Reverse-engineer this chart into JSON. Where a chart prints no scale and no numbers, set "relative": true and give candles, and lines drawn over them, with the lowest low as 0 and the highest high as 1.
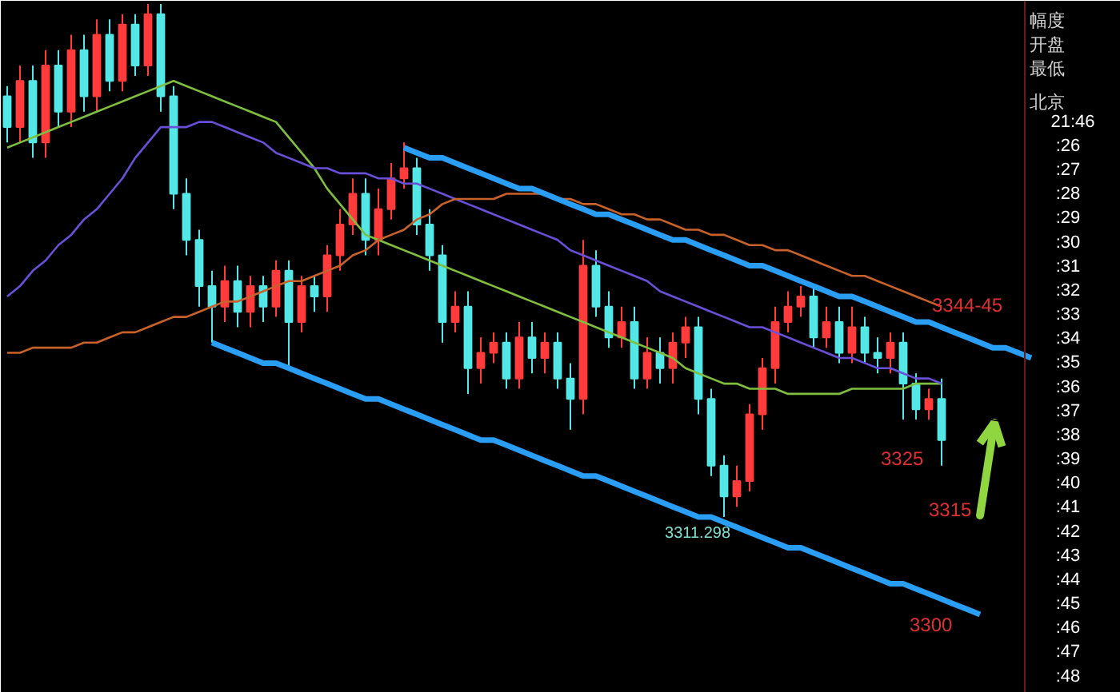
{
  "chart_data": {
    "type": "candlestick",
    "relative": true,
    "grid": false,
    "categories": [
      null,
      null,
      null,
      null,
      null,
      null,
      null,
      null,
      null,
      null,
      null,
      null,
      null,
      null,
      null,
      null,
      null,
      null,
      null,
      null,
      null,
      null,
      null,
      null,
      null,
      null,
      null,
      null,
      null,
      null,
      null,
      null,
      null,
      null,
      null,
      null,
      null,
      null,
      null,
      null,
      null,
      null,
      null,
      null,
      null,
      null,
      null,
      null,
      null,
      null,
      null,
      null,
      null,
      null,
      null,
      null,
      null,
      null,
      null,
      null,
      null,
      null,
      null,
      null,
      null,
      null,
      null,
      null,
      null,
      null,
      null,
      null,
      null,
      null,
      null,
      null,
      null,
      null,
      null,
      null,
      null
    ],
    "ohlc": [
      [
        0.82,
        0.84,
        0.73,
        0.76
      ],
      [
        0.76,
        0.88,
        0.73,
        0.85
      ],
      [
        0.85,
        0.88,
        0.7,
        0.73
      ],
      [
        0.73,
        0.91,
        0.7,
        0.88
      ],
      [
        0.88,
        0.91,
        0.76,
        0.79
      ],
      [
        0.79,
        0.94,
        0.76,
        0.91
      ],
      [
        0.91,
        0.94,
        0.79,
        0.82
      ],
      [
        0.82,
        0.97,
        0.79,
        0.94
      ],
      [
        0.94,
        0.97,
        0.83,
        0.85
      ],
      [
        0.85,
        0.98,
        0.83,
        0.96
      ],
      [
        0.96,
        0.98,
        0.86,
        0.88
      ],
      [
        0.88,
        1.0,
        0.86,
        0.98
      ],
      [
        0.98,
        1.0,
        0.79,
        0.82
      ],
      [
        0.82,
        0.84,
        0.6,
        0.63
      ],
      [
        0.63,
        0.66,
        0.51,
        0.54
      ],
      [
        0.54,
        0.56,
        0.41,
        0.45
      ],
      [
        0.45,
        0.48,
        0.34,
        0.41
      ],
      [
        0.41,
        0.49,
        0.38,
        0.46
      ],
      [
        0.46,
        0.49,
        0.37,
        0.4
      ],
      [
        0.4,
        0.47,
        0.37,
        0.45
      ],
      [
        0.45,
        0.47,
        0.38,
        0.41
      ],
      [
        0.41,
        0.5,
        0.39,
        0.48
      ],
      [
        0.48,
        0.5,
        0.29,
        0.38
      ],
      [
        0.38,
        0.47,
        0.36,
        0.45
      ],
      [
        0.45,
        0.47,
        0.4,
        0.43
      ],
      [
        0.43,
        0.53,
        0.4,
        0.51
      ],
      [
        0.51,
        0.6,
        0.48,
        0.57
      ],
      [
        0.57,
        0.66,
        0.55,
        0.63
      ],
      [
        0.63,
        0.66,
        0.51,
        0.54
      ],
      [
        0.54,
        0.64,
        0.51,
        0.6
      ],
      [
        0.6,
        0.69,
        0.58,
        0.66
      ],
      [
        0.66,
        0.73,
        0.64,
        0.68
      ],
      [
        0.68,
        0.7,
        0.55,
        0.57
      ],
      [
        0.57,
        0.6,
        0.48,
        0.51
      ],
      [
        0.51,
        0.53,
        0.34,
        0.38
      ],
      [
        0.38,
        0.44,
        0.36,
        0.41
      ],
      [
        0.41,
        0.44,
        0.24,
        0.29
      ],
      [
        0.29,
        0.35,
        0.26,
        0.32
      ],
      [
        0.32,
        0.36,
        0.3,
        0.34
      ],
      [
        0.34,
        0.36,
        0.25,
        0.27
      ],
      [
        0.27,
        0.38,
        0.25,
        0.35
      ],
      [
        0.35,
        0.38,
        0.28,
        0.31
      ],
      [
        0.31,
        0.36,
        0.28,
        0.34
      ],
      [
        0.34,
        0.36,
        0.25,
        0.27
      ],
      [
        0.27,
        0.3,
        0.17,
        0.23
      ],
      [
        0.23,
        0.54,
        0.2,
        0.49
      ],
      [
        0.49,
        0.52,
        0.39,
        0.41
      ],
      [
        0.41,
        0.44,
        0.33,
        0.35
      ],
      [
        0.35,
        0.41,
        0.33,
        0.38
      ],
      [
        0.38,
        0.41,
        0.25,
        0.27
      ],
      [
        0.27,
        0.35,
        0.25,
        0.32
      ],
      [
        0.32,
        0.35,
        0.26,
        0.29
      ],
      [
        0.29,
        0.36,
        0.26,
        0.34
      ],
      [
        0.34,
        0.39,
        0.31,
        0.37
      ],
      [
        0.37,
        0.39,
        0.2,
        0.23
      ],
      [
        0.23,
        0.25,
        0.08,
        0.1
      ],
      [
        0.1,
        0.12,
        0.0,
        0.04
      ],
      [
        0.04,
        0.1,
        0.02,
        0.07
      ],
      [
        0.07,
        0.22,
        0.05,
        0.2
      ],
      [
        0.2,
        0.31,
        0.17,
        0.29
      ],
      [
        0.29,
        0.41,
        0.26,
        0.38
      ],
      [
        0.38,
        0.44,
        0.36,
        0.41
      ],
      [
        0.41,
        0.45,
        0.39,
        0.43
      ],
      [
        0.43,
        0.45,
        0.33,
        0.35
      ],
      [
        0.35,
        0.41,
        0.33,
        0.38
      ],
      [
        0.38,
        0.41,
        0.3,
        0.32
      ],
      [
        0.32,
        0.41,
        0.3,
        0.37
      ],
      [
        0.37,
        0.39,
        0.3,
        0.32
      ],
      [
        0.32,
        0.35,
        0.28,
        0.31
      ],
      [
        0.31,
        0.36,
        0.28,
        0.34
      ],
      [
        0.34,
        0.36,
        0.19,
        0.26
      ],
      [
        0.26,
        0.28,
        0.19,
        0.21
      ],
      [
        0.21,
        0.25,
        0.19,
        0.23
      ],
      [
        0.23,
        0.27,
        0.1,
        0.15
      ],
      null,
      null,
      null,
      null,
      null,
      null,
      null
    ],
    "colors": [
      "#55e6e6",
      "#ff3c3c",
      "#55e6e6",
      "#ff3c3c",
      "#55e6e6",
      "#ff3c3c",
      "#55e6e6",
      "#ff3c3c",
      "#55e6e6",
      "#ff3c3c",
      "#55e6e6",
      "#ff3c3c",
      "#55e6e6",
      "#55e6e6",
      "#55e6e6",
      "#55e6e6",
      "#55e6e6",
      "#ff3c3c",
      "#55e6e6",
      "#ff3c3c",
      "#55e6e6",
      "#ff3c3c",
      "#55e6e6",
      "#ff3c3c",
      "#55e6e6",
      "#ff3c3c",
      "#ff3c3c",
      "#ff3c3c",
      "#55e6e6",
      "#ff3c3c",
      "#ff3c3c",
      "#ff3c3c",
      "#55e6e6",
      "#55e6e6",
      "#55e6e6",
      "#ff3c3c",
      "#55e6e6",
      "#ff3c3c",
      "#ff3c3c",
      "#55e6e6",
      "#ff3c3c",
      "#55e6e6",
      "#ff3c3c",
      "#55e6e6",
      "#55e6e6",
      "#ff3c3c",
      "#55e6e6",
      "#55e6e6",
      "#ff3c3c",
      "#55e6e6",
      "#ff3c3c",
      "#55e6e6",
      "#ff3c3c",
      "#ff3c3c",
      "#55e6e6",
      "#55e6e6",
      "#55e6e6",
      "#ff3c3c",
      "#ff3c3c",
      "#ff3c3c",
      "#ff3c3c",
      "#ff3c3c",
      "#ff3c3c",
      "#55e6e6",
      "#ff3c3c",
      "#55e6e6",
      "#ff3c3c",
      "#55e6e6",
      "#55e6e6",
      "#ff3c3c",
      "#55e6e6",
      "#55e6e6",
      "#ff3c3c",
      "#55e6e6",
      null,
      null,
      null,
      null,
      null,
      null,
      null
    ],
    "series": [
      {
        "type": "line",
        "color": "#7fbf3f",
        "values": [
          0.72,
          0.73,
          0.74,
          0.75,
          0.76,
          0.77,
          0.78,
          0.79,
          0.8,
          0.81,
          0.82,
          0.83,
          0.84,
          0.85,
          0.84,
          0.83,
          0.82,
          0.81,
          0.8,
          0.79,
          0.78,
          0.77,
          0.74,
          0.71,
          0.68,
          0.64,
          0.61,
          0.58,
          0.55,
          0.54,
          0.53,
          0.52,
          0.51,
          0.5,
          0.49,
          0.48,
          0.47,
          0.46,
          0.45,
          0.44,
          0.43,
          0.42,
          0.41,
          0.4,
          0.39,
          0.38,
          0.37,
          0.36,
          0.35,
          0.34,
          0.33,
          0.32,
          0.31,
          0.29,
          0.28,
          0.27,
          0.26,
          0.26,
          0.25,
          0.25,
          0.25,
          0.24,
          0.24,
          0.24,
          0.24,
          0.24,
          0.25,
          0.25,
          0.25,
          0.25,
          0.25,
          0.26,
          0.26,
          0.26,
          null,
          null,
          null,
          null,
          null,
          null,
          null
        ]
      },
      {
        "type": "line",
        "color": "#6a4fd8",
        "values": [
          0.43,
          0.45,
          0.48,
          0.5,
          0.53,
          0.55,
          0.58,
          0.6,
          0.63,
          0.66,
          0.7,
          0.73,
          0.76,
          0.76,
          0.76,
          0.77,
          0.77,
          0.76,
          0.75,
          0.74,
          0.73,
          0.71,
          0.7,
          0.69,
          0.68,
          0.68,
          0.67,
          0.67,
          0.67,
          0.66,
          0.66,
          0.65,
          0.65,
          0.64,
          0.63,
          0.62,
          0.61,
          0.6,
          0.59,
          0.58,
          0.57,
          0.56,
          0.55,
          0.54,
          0.52,
          0.51,
          0.5,
          0.49,
          0.48,
          0.47,
          0.46,
          0.44,
          0.43,
          0.42,
          0.41,
          0.4,
          0.39,
          0.38,
          0.37,
          0.37,
          0.36,
          0.35,
          0.34,
          0.33,
          0.32,
          0.31,
          0.31,
          0.3,
          0.29,
          0.29,
          0.28,
          0.27,
          0.27,
          0.26,
          null,
          null,
          null,
          null,
          null,
          null,
          null
        ]
      },
      {
        "type": "line",
        "color": "#c8622a",
        "values": [
          0.32,
          0.32,
          0.33,
          0.33,
          0.33,
          0.33,
          0.34,
          0.34,
          0.35,
          0.36,
          0.36,
          0.37,
          0.38,
          0.39,
          0.39,
          0.4,
          0.41,
          0.42,
          0.42,
          0.43,
          0.44,
          0.45,
          0.46,
          0.46,
          0.47,
          0.48,
          0.49,
          0.51,
          0.52,
          0.54,
          0.55,
          0.56,
          0.58,
          0.59,
          0.61,
          0.62,
          0.62,
          0.62,
          0.62,
          0.63,
          0.63,
          0.63,
          0.63,
          0.62,
          0.62,
          0.61,
          0.61,
          0.6,
          0.59,
          0.59,
          0.58,
          0.58,
          0.57,
          0.56,
          0.56,
          0.55,
          0.55,
          0.54,
          0.53,
          0.53,
          0.52,
          0.52,
          0.51,
          0.5,
          0.49,
          0.48,
          0.47,
          0.47,
          0.46,
          0.45,
          0.44,
          0.43,
          0.42,
          0.41,
          null,
          null,
          null,
          null,
          null,
          null,
          null
        ]
      },
      {
        "type": "line",
        "color": "#2a9df4",
        "values": [
          null,
          null,
          null,
          null,
          null,
          null,
          null,
          null,
          null,
          null,
          null,
          null,
          null,
          null,
          null,
          null,
          null,
          null,
          null,
          null,
          null,
          null,
          null,
          null,
          null,
          null,
          null,
          null,
          null,
          null,
          null,
          0.72,
          0.71,
          0.7,
          0.7,
          0.69,
          0.68,
          0.67,
          0.66,
          0.65,
          0.64,
          0.64,
          0.63,
          0.62,
          0.61,
          0.6,
          0.59,
          0.59,
          0.58,
          0.57,
          0.56,
          0.55,
          0.54,
          0.54,
          0.53,
          0.52,
          0.51,
          0.5,
          0.49,
          0.49,
          0.48,
          0.47,
          0.46,
          0.45,
          0.44,
          0.43,
          0.43,
          0.42,
          0.41,
          0.4,
          0.39,
          0.38,
          0.38,
          0.37,
          0.36,
          0.35,
          0.34,
          0.33,
          0.33,
          0.32,
          0.31
        ]
      },
      {
        "type": "line",
        "color": "#2a9df4",
        "values": [
          null,
          null,
          null,
          null,
          null,
          null,
          null,
          null,
          null,
          null,
          null,
          null,
          null,
          null,
          null,
          null,
          0.34,
          0.33,
          0.32,
          0.31,
          0.3,
          0.3,
          0.29,
          0.28,
          0.27,
          0.26,
          0.25,
          0.24,
          0.23,
          0.23,
          0.22,
          0.21,
          0.2,
          0.19,
          0.18,
          0.17,
          0.16,
          0.15,
          0.15,
          0.14,
          0.13,
          0.12,
          0.11,
          0.1,
          0.09,
          0.08,
          0.08,
          0.07,
          0.06,
          0.05,
          0.04,
          0.03,
          0.02,
          0.01,
          0.0,
          0.0,
          -0.01,
          -0.02,
          -0.03,
          -0.04,
          -0.05,
          -0.06,
          -0.06,
          -0.07,
          -0.08,
          -0.09,
          -0.1,
          -0.11,
          -0.12,
          -0.13,
          -0.13,
          -0.14,
          -0.15,
          -0.16,
          -0.17,
          -0.18,
          -0.19,
          null,
          null,
          null,
          null
        ]
      }
    ],
    "annotations": [
      "3344-45",
      "3325",
      "3315",
      "3300",
      {
        "text": "3311.298",
        "y": 0.0
      },
      "幅度",
      "开盘",
      "最低",
      "北京",
      "21:46",
      ":26",
      ":27",
      ":28",
      ":29",
      ":30",
      ":31",
      ":32",
      ":33",
      ":34",
      ":35",
      ":36",
      ":37",
      ":38",
      ":39",
      ":40",
      ":41",
      ":42",
      ":43",
      ":44",
      ":45",
      ":46",
      ":47",
      ":48"
    ]
  }
}
